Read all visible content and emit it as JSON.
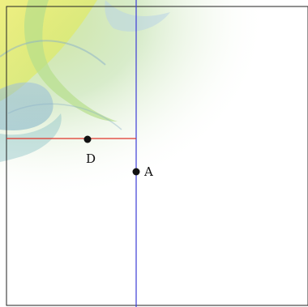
{
  "background": {
    "wallpaper": "abstract-swirl",
    "colors": {
      "yellow": "#e8ec8a",
      "green": "#a9d77f",
      "teal": "#7fb9b9",
      "blue": "#a7c3dd",
      "white": "#ffffff"
    }
  },
  "canvas": {
    "border_color": "#222222"
  },
  "lines": [
    {
      "id": "vertical-line",
      "color": "#3d3dd6"
    },
    {
      "id": "horizontal-segment",
      "color": "#e0342a"
    }
  ],
  "points": [
    {
      "id": "point-d",
      "label": "D"
    },
    {
      "id": "point-a",
      "label": "A"
    }
  ]
}
